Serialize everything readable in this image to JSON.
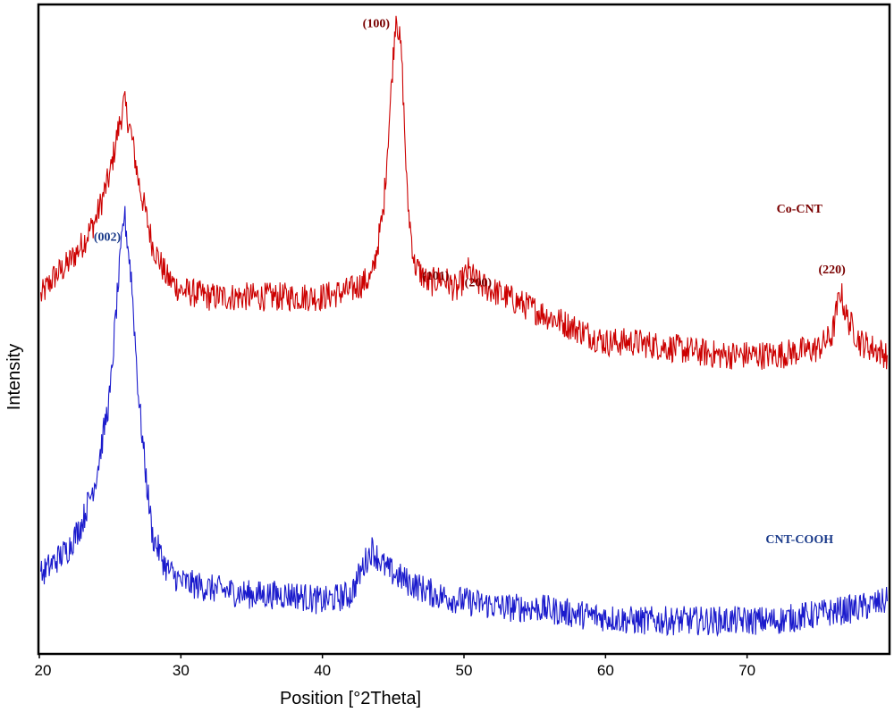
{
  "chart_data": {
    "type": "line",
    "title": "",
    "xlabel": "Position [°2Theta]",
    "ylabel": "Intensity",
    "xlim": [
      20,
      80
    ],
    "ylim": [
      0,
      100
    ],
    "x_ticks": [
      20,
      30,
      40,
      50,
      60,
      70
    ],
    "x_tick_labels": [
      "20",
      "30",
      "40",
      "50",
      "60",
      "70"
    ],
    "grid": false,
    "series": [
      {
        "name": "Co-CNT",
        "color": "#cc0000",
        "points": [
          [
            20.1,
            55
          ],
          [
            21.0,
            58
          ],
          [
            22.0,
            60
          ],
          [
            23.0,
            63
          ],
          [
            24.0,
            67
          ],
          [
            25.0,
            74
          ],
          [
            25.5,
            80
          ],
          [
            26.0,
            85
          ],
          [
            26.5,
            80
          ],
          [
            27.0,
            73
          ],
          [
            28.0,
            63
          ],
          [
            29.0,
            58
          ],
          [
            30.0,
            56
          ],
          [
            32.0,
            55
          ],
          [
            35.0,
            55
          ],
          [
            38.0,
            55
          ],
          [
            40.0,
            55
          ],
          [
            42.0,
            56
          ],
          [
            43.5,
            58
          ],
          [
            44.3,
            68
          ],
          [
            44.8,
            85
          ],
          [
            45.2,
            99
          ],
          [
            45.6,
            92
          ],
          [
            46.0,
            70
          ],
          [
            46.5,
            60
          ],
          [
            47.5,
            57
          ],
          [
            48.5,
            58
          ],
          [
            49.5,
            56
          ],
          [
            50.3,
            59
          ],
          [
            51.0,
            57
          ],
          [
            53.0,
            55
          ],
          [
            55.0,
            53
          ],
          [
            58.0,
            50
          ],
          [
            60.0,
            48
          ],
          [
            62.0,
            48
          ],
          [
            65.0,
            47
          ],
          [
            68.0,
            46
          ],
          [
            72.0,
            46
          ],
          [
            75.0,
            47
          ],
          [
            76.0,
            49
          ],
          [
            76.6,
            56
          ],
          [
            77.0,
            52
          ],
          [
            78.0,
            48
          ],
          [
            79.9,
            46
          ]
        ]
      },
      {
        "name": "CNT-COOH",
        "color": "#1a1acc",
        "points": [
          [
            20.1,
            12
          ],
          [
            21.0,
            14
          ],
          [
            22.0,
            16
          ],
          [
            23.0,
            20
          ],
          [
            24.0,
            27
          ],
          [
            25.0,
            40
          ],
          [
            25.5,
            55
          ],
          [
            26.0,
            68
          ],
          [
            26.5,
            58
          ],
          [
            27.0,
            40
          ],
          [
            27.5,
            28
          ],
          [
            28.0,
            18
          ],
          [
            29.0,
            13
          ],
          [
            30.0,
            11
          ],
          [
            32.0,
            10
          ],
          [
            35.0,
            9
          ],
          [
            38.0,
            9
          ],
          [
            40.0,
            8
          ],
          [
            42.0,
            9
          ],
          [
            43.0,
            14
          ],
          [
            43.5,
            16
          ],
          [
            44.5,
            13
          ],
          [
            46.0,
            11
          ],
          [
            48.0,
            9
          ],
          [
            50.0,
            8
          ],
          [
            53.0,
            7
          ],
          [
            55.0,
            7
          ],
          [
            58.0,
            6
          ],
          [
            62.0,
            5
          ],
          [
            65.0,
            5
          ],
          [
            68.0,
            5
          ],
          [
            72.0,
            5
          ],
          [
            75.0,
            6
          ],
          [
            78.0,
            7
          ],
          [
            79.9,
            8
          ]
        ]
      }
    ],
    "annotations": [
      {
        "text": "(002)",
        "x": 24.8,
        "y": 66,
        "color": "#1a3a8a"
      },
      {
        "text": "(100)",
        "x": 43.8,
        "y": 99,
        "color": "#7a0000"
      },
      {
        "text": "(101)",
        "x": 48.0,
        "y": 60,
        "color": "#7a0000"
      },
      {
        "text": "(200)",
        "x": 51.0,
        "y": 59,
        "color": "#7a0000"
      },
      {
        "text": "(220)",
        "x": 76.0,
        "y": 61,
        "color": "#7a0000"
      }
    ],
    "series_labels": [
      {
        "text": "Co-CNT",
        "x": 73.7,
        "y": 68,
        "color": "#7a0000"
      },
      {
        "text": "CNT-COOH",
        "x": 73.7,
        "y": 17,
        "color": "#1a3a8a"
      }
    ]
  }
}
